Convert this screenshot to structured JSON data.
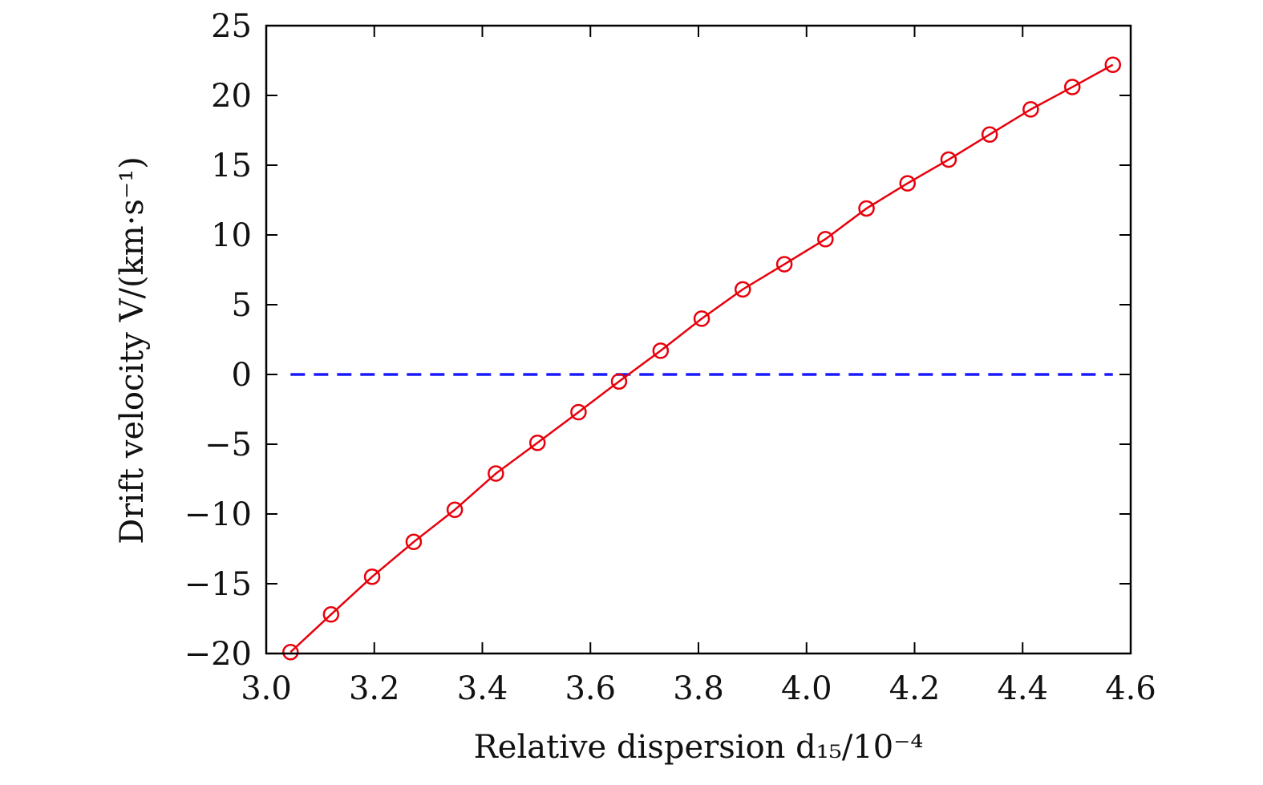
{
  "chart_data": {
    "type": "line",
    "title": "",
    "xlabel": "Relative dispersion d₁₅/10⁻⁴",
    "ylabel": "Drift velocity V/(km·s⁻¹)",
    "xlim": [
      3.0,
      4.6
    ],
    "ylim": [
      -20,
      25
    ],
    "xticks": [
      "3.0",
      "3.2",
      "3.4",
      "3.6",
      "3.8",
      "4.0",
      "4.2",
      "4.4",
      "4.6"
    ],
    "yticks": [
      "−20",
      "−15",
      "−10",
      "−5",
      "0",
      "5",
      "10",
      "15",
      "20",
      "25"
    ],
    "grid": false,
    "series": [
      {
        "color": "#e8000b",
        "marker": "open-circle",
        "x": [
          3.045,
          3.12,
          3.196,
          3.273,
          3.349,
          3.425,
          3.502,
          3.578,
          3.653,
          3.73,
          3.806,
          3.882,
          3.959,
          4.035,
          4.111,
          4.187,
          4.263,
          4.339,
          4.415,
          4.492,
          4.567
        ],
        "y": [
          -19.9,
          -17.2,
          -14.5,
          -12.0,
          -9.7,
          -7.1,
          -4.9,
          -2.7,
          -0.5,
          1.7,
          4.0,
          6.1,
          7.9,
          9.7,
          11.9,
          13.7,
          15.4,
          17.2,
          19.0,
          20.6,
          22.2
        ]
      }
    ],
    "reference_line": {
      "y": 0,
      "x_range": [
        3.045,
        4.567
      ],
      "color": "#1a1aff",
      "style": "dashed"
    }
  }
}
